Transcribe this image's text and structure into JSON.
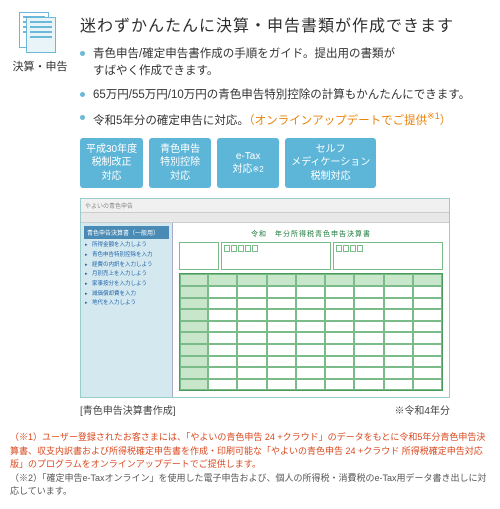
{
  "left": {
    "label": "決算・申告"
  },
  "headline": "迷わずかんたんに決算・申告書類が作成できます",
  "bullets": {
    "b1a": "青色申告/確定申告書作成の手順をガイド。提出用の書類が",
    "b1b": "すばやく作成できます。",
    "b2": "65万円/55万円/10万円の青色申告特別控除の計算もかんたんにできます。",
    "b3a": "令和5年分の確定申告に対応。",
    "b3b": "（オンラインアップデートでご提供",
    "b3c": "※1",
    "b3d": "）"
  },
  "badges": {
    "a1": "平成30年度",
    "a2": "税制改正",
    "a3": "対応",
    "b1": "青色申告",
    "b2": "特別控除",
    "b3": "対応",
    "c1": "e-Tax",
    "c2": "対応",
    "c2s": "※2",
    "d1": "セルフ",
    "d2": "メディケーション",
    "d3": "税制対応"
  },
  "screenshot": {
    "titlebar": "やよいの青色申告",
    "side_header": "青色申告決算書（一般用）",
    "side_items": {
      "i1": "所得金額を入力しよう",
      "i2": "青色申告特別控除を入力",
      "i3": "経費の内訳を入力しよう",
      "i4": "月別売上を入力しよう",
      "i5": "家事按分を入力しよう",
      "i6": "減価償却費を入力",
      "i7": "地代を入力しよう"
    },
    "form_title": "令和　年分所得税青色申告決算書"
  },
  "captions": {
    "left": "[青色申告決算書作成]",
    "right": "※令和4年分"
  },
  "footnotes": {
    "f1": "（※1）ユーザー登録されたお客さまには、「やよいの青色申告 24 +クラウド」のデータをもとに令和5年分青色申告決算書、収支内訳書および所得税確定申告書を作成・印刷可能な「やよいの青色申告 24 +クラウド 所得税確定申告対応版」のプログラムをオンラインアップデートでご提供します。",
    "f2": "（※2）「確定申告e-Taxオンライン」を使用した電子申告および、個人の所得税・消費税のe-Tax用データ書き出しに対応しています。"
  },
  "colors": {
    "accent": "#5db5d8",
    "orange": "#e8840c",
    "red": "#d9481f",
    "green": "#4a9a5a"
  }
}
